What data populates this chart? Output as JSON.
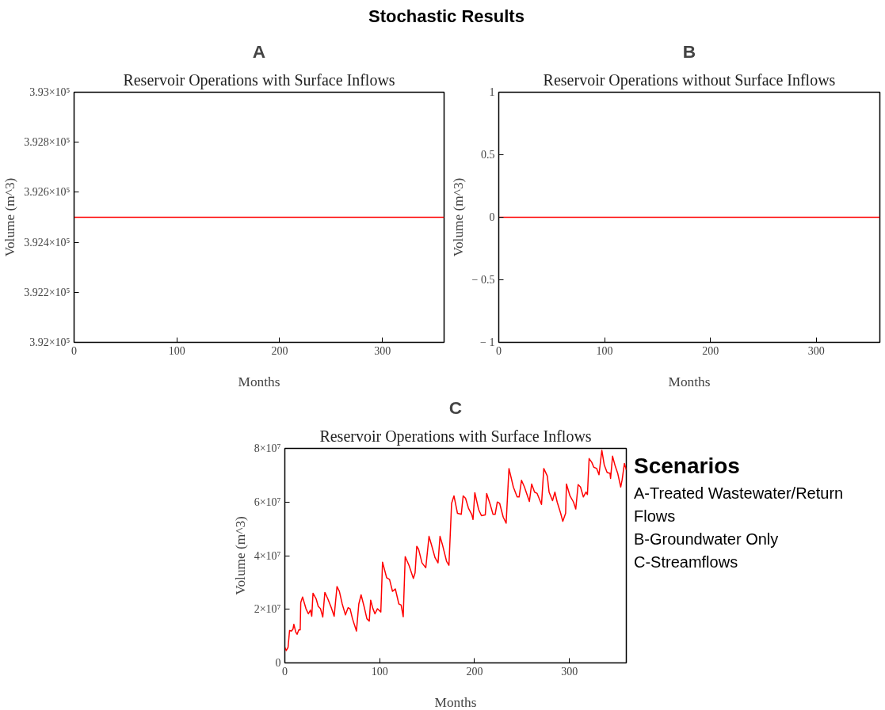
{
  "chart_data": [
    {
      "type": "other",
      "title": "Stochastic Results"
    },
    {
      "type": "line",
      "title": "A",
      "subtitle": "Reservoir Operations with Surface Inflows",
      "xlabel": "Months",
      "ylabel": "Volume (m^3)",
      "xlim": [
        0,
        360
      ],
      "ylim": [
        392000,
        393000
      ],
      "xticks": [
        0,
        100,
        200,
        300
      ],
      "yticks": [
        {
          "value": 392000,
          "label": "3.92×10⁵"
        },
        {
          "value": 392200,
          "label": "3.922×10⁵"
        },
        {
          "value": 392400,
          "label": "3.924×10⁵"
        },
        {
          "value": 392600,
          "label": "3.926×10⁵"
        },
        {
          "value": 392800,
          "label": "3.928×10⁵"
        },
        {
          "value": 393000,
          "label": "3.93×10⁵"
        }
      ],
      "x": [
        0,
        360
      ],
      "series": [
        {
          "color": "#ff0000",
          "values": [
            392500,
            392500
          ]
        }
      ]
    },
    {
      "type": "line",
      "title": "B",
      "subtitle": "Reservoir Operations without Surface Inflows",
      "xlabel": "Months",
      "ylabel": "Volume (m^3)",
      "xlim": [
        0,
        360
      ],
      "ylim": [
        -1,
        1
      ],
      "xticks": [
        0,
        100,
        200,
        300
      ],
      "yticks": [
        {
          "value": -1,
          "label": "− 1"
        },
        {
          "value": -0.5,
          "label": "− 0.5"
        },
        0,
        0.5,
        1
      ],
      "x": [
        0,
        360
      ],
      "series": [
        {
          "color": "#ff0000",
          "values": [
            0,
            0
          ]
        }
      ]
    },
    {
      "type": "line",
      "title": "C",
      "subtitle": "Reservoir Operations with Surface Inflows",
      "xlabel": "Months",
      "ylabel": "Volume (m^3)",
      "xlim": [
        0,
        360
      ],
      "ylim": [
        0,
        80000000
      ],
      "xticks": [
        0,
        100,
        200,
        300
      ],
      "yticks": [
        0,
        {
          "value": 20000000,
          "label": "2×10⁷"
        },
        {
          "value": 40000000,
          "label": "4×10⁷"
        },
        {
          "value": 60000000,
          "label": "6×10⁷"
        },
        {
          "value": 80000000,
          "label": "8×10⁷"
        }
      ],
      "x": [
        0,
        1.5,
        3.4,
        5,
        7,
        8.6,
        9.5,
        11.6,
        13,
        14.7,
        16.2,
        16.8,
        18.7,
        22.3,
        24.8,
        27,
        28.4,
        29.7,
        33,
        35.2,
        37.6,
        40,
        42.2,
        45.3,
        49.2,
        52,
        55,
        57.5,
        60.5,
        63.9,
        66.7,
        68.8,
        71.3,
        75.5,
        78,
        80.4,
        83.5,
        86.5,
        89,
        90.5,
        92.7,
        95,
        97.6,
        101.2,
        103,
        107.3,
        110.4,
        113.5,
        116.5,
        120.2,
        122.6,
        124.8,
        126.9,
        130.9,
        135.5,
        137.3,
        139.1,
        141,
        144.6,
        148.6,
        152,
        154.4,
        158.4,
        161.5,
        163.6,
        166,
        170.6,
        173,
        175.8,
        178.3,
        182,
        186,
        188,
        190.5,
        193.6,
        197,
        198.4,
        200.3,
        204.3,
        207.3,
        211.3,
        212.8,
        216.5,
        219.5,
        221.7,
        224,
        226.5,
        230.2,
        233.3,
        236.3,
        240.9,
        244.9,
        247,
        249.5,
        252.6,
        255.3,
        257.8,
        260.2,
        263.3,
        266,
        270.6,
        273,
        276.7,
        278.6,
        282.2,
        284.7,
        287.1,
        290.8,
        293,
        296,
        296.9,
        300.6,
        304.3,
        306.7,
        309.2,
        311.7,
        314.7,
        317.5,
        319,
        320.8,
        323.6,
        325.7,
        328.8,
        331.2,
        334.2,
        336.7,
        339.8,
        342.8,
        343.4,
        345.5,
        348.3,
        351,
        354.1,
        355.6,
        358,
        360
      ],
      "series": [
        {
          "color": "#ff0000",
          "values": [
            5800000,
            4600000,
            5800000,
            12100000,
            11900000,
            12600000,
            14400000,
            11400000,
            10700000,
            12300000,
            12300000,
            22500000,
            24600000,
            20200000,
            18300000,
            19700000,
            17400000,
            26000000,
            23900000,
            21100000,
            20200000,
            17100000,
            26300000,
            23900000,
            20400000,
            17400000,
            28500000,
            26700000,
            22000000,
            17900000,
            20600000,
            20200000,
            16500000,
            11900000,
            22000000,
            25400000,
            21100000,
            16500000,
            15600000,
            23400000,
            20400000,
            18300000,
            20200000,
            19000000,
            37600000,
            31800000,
            31100000,
            26700000,
            27600000,
            22000000,
            21600000,
            17200000,
            39600000,
            36400000,
            31500000,
            33600000,
            43500000,
            42400000,
            37300000,
            35500000,
            47200000,
            44300000,
            39200000,
            37300000,
            47200000,
            44300000,
            37800000,
            36400000,
            59500000,
            62300000,
            55800000,
            55400000,
            62300000,
            61400000,
            57700000,
            55400000,
            53500000,
            63500000,
            57200000,
            54900000,
            55200000,
            63200000,
            59100000,
            55400000,
            55400000,
            60000000,
            59500000,
            54400000,
            52100000,
            72500000,
            65600000,
            61900000,
            61900000,
            68100000,
            65600000,
            62800000,
            60200000,
            66700000,
            63700000,
            63200000,
            59100000,
            72500000,
            69700000,
            63700000,
            60500000,
            63700000,
            60000000,
            55800000,
            52800000,
            55800000,
            66700000,
            62300000,
            60000000,
            57400000,
            66500000,
            65600000,
            61900000,
            63700000,
            62800000,
            76200000,
            74800000,
            73000000,
            72500000,
            70200000,
            79300000,
            73900000,
            71000000,
            70700000,
            68800000,
            77100000,
            73400000,
            70600000,
            65600000,
            68300000,
            74400000,
            72000000
          ]
        }
      ]
    },
    {
      "type": "other",
      "title": "Scenarios",
      "annotations": [
        "A-Treated Wastewater/Return Flows",
        "B-Groundwater Only",
        "C-Streamflows"
      ]
    }
  ]
}
